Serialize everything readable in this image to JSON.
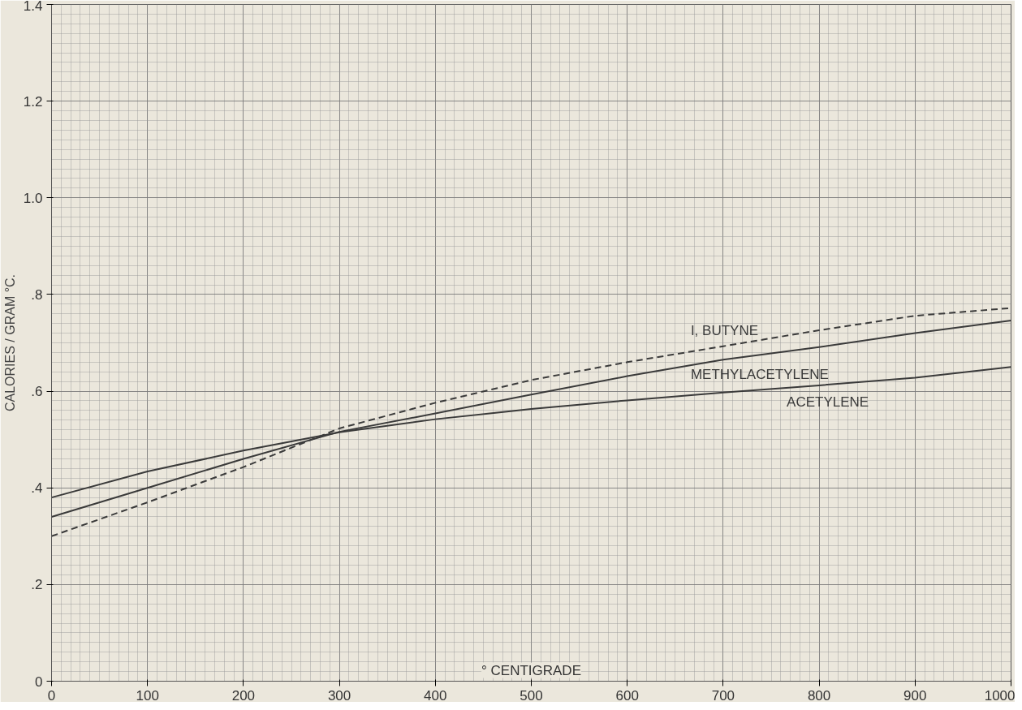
{
  "chart_data": {
    "type": "line",
    "xlabel": "° CENTIGRADE",
    "ylabel": "CALORIES / GRAM °C.",
    "x": [
      0,
      100,
      200,
      300,
      400,
      500,
      600,
      700,
      800,
      900,
      1000
    ],
    "series": [
      {
        "name": "ACETYLENE",
        "color": "#3a3a3a",
        "line_style": "solid",
        "values": [
          0.38,
          0.434,
          0.477,
          0.515,
          0.542,
          0.563,
          0.581,
          0.597,
          0.612,
          0.628,
          0.65
        ]
      },
      {
        "name": "METHYLACETYLENE",
        "color": "#3a3a3a",
        "line_style": "solid",
        "values": [
          0.34,
          0.4,
          0.46,
          0.516,
          0.554,
          0.593,
          0.631,
          0.665,
          0.691,
          0.72,
          0.746
        ]
      },
      {
        "name": "I, BUTYNE",
        "color": "#3a3a3a",
        "line_style": "dashed",
        "values": [
          0.3,
          0.37,
          0.443,
          0.523,
          0.576,
          0.623,
          0.66,
          0.693,
          0.726,
          0.756,
          0.772
        ]
      }
    ],
    "xlim": [
      0,
      1000
    ],
    "ylim": [
      0,
      1.4
    ],
    "xticks": [
      0,
      100,
      200,
      300,
      400,
      500,
      600,
      700,
      800,
      900,
      1000
    ],
    "yticks": [
      {
        "value": 0,
        "label": "0"
      },
      {
        "value": 0.2,
        "label": ".2"
      },
      {
        "value": 0.4,
        "label": ".4"
      },
      {
        "value": 0.6,
        "label": ".6"
      },
      {
        "value": 0.8,
        "label": ".8"
      },
      {
        "value": 1.0,
        "label": "1.0"
      },
      {
        "value": 1.2,
        "label": "1.2"
      },
      {
        "value": 1.4,
        "label": "1.4"
      }
    ],
    "grid": true,
    "legend": false
  }
}
